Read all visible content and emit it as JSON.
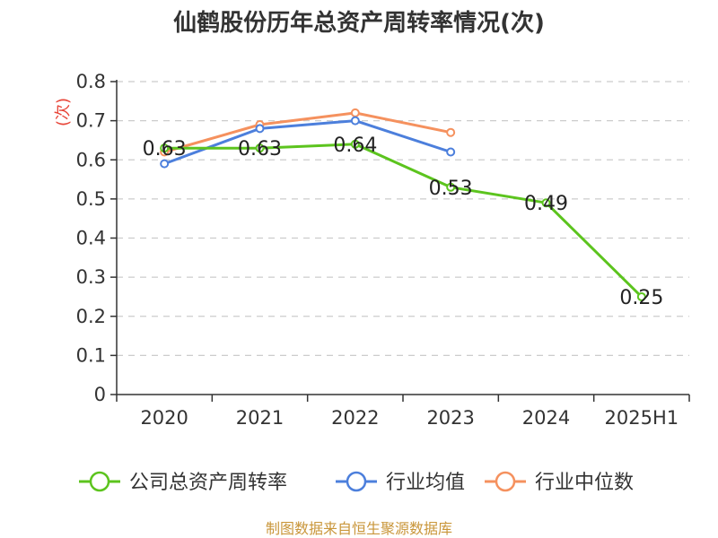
{
  "chart_data": {
    "type": "line",
    "title": "仙鹤股份历年总资产周转率情况(次)",
    "ylabel": "(次)",
    "xlabel": "",
    "categories": [
      "2020",
      "2021",
      "2022",
      "2023",
      "2024",
      "2025H1"
    ],
    "ylim": [
      0,
      0.8
    ],
    "yticks": [
      "0",
      "0.1",
      "0.2",
      "0.3",
      "0.4",
      "0.5",
      "0.6",
      "0.7",
      "0.8"
    ],
    "grid": true,
    "legend_position": "bottom",
    "series": [
      {
        "name": "公司总资产周转率",
        "color": "#5cc41e",
        "values": [
          0.63,
          0.63,
          0.64,
          0.53,
          0.49,
          0.25
        ],
        "labels": [
          "0.63",
          "0.63",
          "0.64",
          "0.53",
          "0.49",
          "0.25"
        ]
      },
      {
        "name": "行业均值",
        "color": "#4c7fdc",
        "values": [
          0.59,
          0.68,
          0.7,
          0.62,
          null,
          null
        ]
      },
      {
        "name": "行业中位数",
        "color": "#f5915e",
        "values": [
          0.62,
          0.69,
          0.72,
          0.67,
          null,
          null
        ]
      }
    ]
  },
  "source": "制图数据来自恒生聚源数据库"
}
